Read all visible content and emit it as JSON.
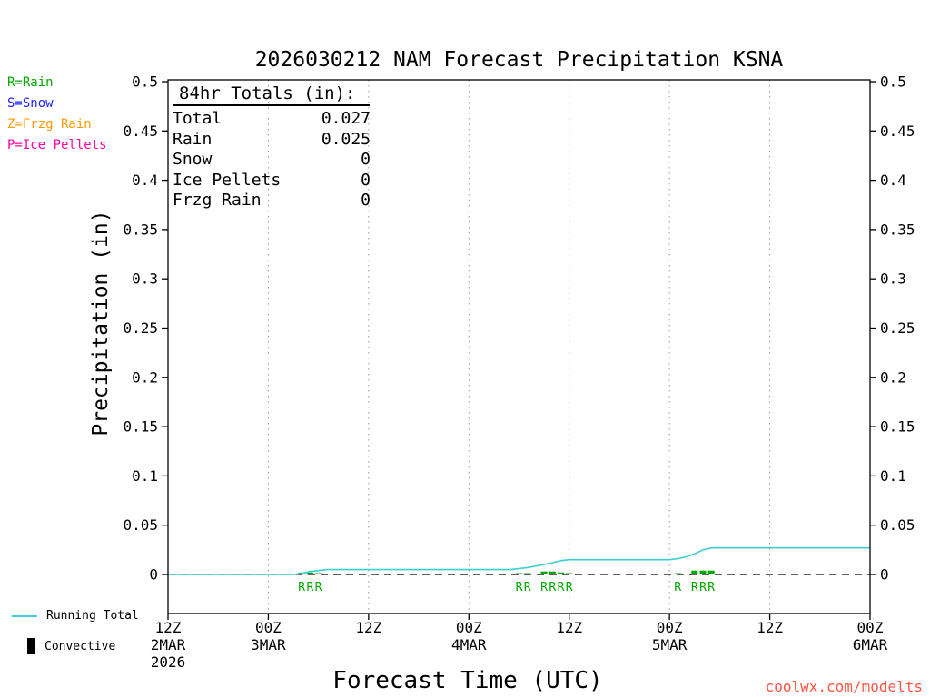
{
  "title": "2026030212 NAM Forecast Precipitation KSNA",
  "watermark": "coolwx.com/modelts",
  "legend_top_left": [
    {
      "code": "R",
      "label": "R=Rain",
      "color": "#00a800"
    },
    {
      "code": "S",
      "label": "S=Snow",
      "color": "#2222ff"
    },
    {
      "code": "Z",
      "label": "Z=Frzg Rain",
      "color": "#ff9900"
    },
    {
      "code": "P",
      "label": "P=Ice Pellets",
      "color": "#ff00aa"
    }
  ],
  "totals_box": {
    "heading": "84hr Totals (in):",
    "rows": [
      {
        "label": "Total",
        "value": "0.027"
      },
      {
        "label": "Rain",
        "value": "0.025"
      },
      {
        "label": "Snow",
        "value": "0"
      },
      {
        "label": "Ice Pellets",
        "value": "0"
      },
      {
        "label": "Frzg Rain",
        "value": "0"
      }
    ]
  },
  "bottom_legend": [
    {
      "label": "Running Total",
      "color": "#3dcfcf",
      "swatch": "line"
    },
    {
      "label": "Convective",
      "color": "#000000",
      "swatch": "bar"
    }
  ],
  "chart_data": {
    "type": "line",
    "title": "2026030212 NAM Forecast Precipitation KSNA",
    "xlabel": "Forecast Time (UTC)",
    "ylabel": "Precipitation (in)",
    "ylim": [
      0,
      0.5
    ],
    "y_tick_step": 0.05,
    "x_hours": [
      0,
      84
    ],
    "grid": "vertical-dotted",
    "zero_line": "dashed",
    "x_ticks": [
      {
        "hour": 0,
        "time": "12Z",
        "date": "2MAR",
        "year": "2026"
      },
      {
        "hour": 12,
        "time": "00Z",
        "date": "3MAR"
      },
      {
        "hour": 24,
        "time": "12Z"
      },
      {
        "hour": 36,
        "time": "00Z",
        "date": "4MAR"
      },
      {
        "hour": 48,
        "time": "12Z"
      },
      {
        "hour": 60,
        "time": "00Z",
        "date": "5MAR"
      },
      {
        "hour": 72,
        "time": "12Z"
      },
      {
        "hour": 84,
        "time": "00Z",
        "date": "6MAR"
      }
    ],
    "series": [
      {
        "name": "Running Total",
        "color": "#3dcfcf",
        "points": [
          [
            0,
            0
          ],
          [
            15,
            0
          ],
          [
            16,
            0.001
          ],
          [
            17,
            0.003
          ],
          [
            18,
            0.004
          ],
          [
            19,
            0.005
          ],
          [
            41,
            0.005
          ],
          [
            43,
            0.007
          ],
          [
            45,
            0.01
          ],
          [
            46,
            0.012
          ],
          [
            47,
            0.014
          ],
          [
            48,
            0.015
          ],
          [
            60,
            0.015
          ],
          [
            61,
            0.016
          ],
          [
            62,
            0.018
          ],
          [
            63,
            0.021
          ],
          [
            64,
            0.025
          ],
          [
            65,
            0.027
          ],
          [
            84,
            0.027
          ]
        ]
      }
    ],
    "precip_type_markers": [
      {
        "hour": 16,
        "type": "R",
        "amount": 0.002
      },
      {
        "hour": 17,
        "type": "R",
        "amount": 0.002
      },
      {
        "hour": 18,
        "type": "R",
        "amount": 0.001
      },
      {
        "hour": 42,
        "type": "R",
        "amount": 0.001
      },
      {
        "hour": 43,
        "type": "R",
        "amount": 0.001
      },
      {
        "hour": 45,
        "type": "R",
        "amount": 0.003
      },
      {
        "hour": 46,
        "type": "R",
        "amount": 0.003
      },
      {
        "hour": 47,
        "type": "R",
        "amount": 0.002
      },
      {
        "hour": 48,
        "type": "R",
        "amount": 0.001
      },
      {
        "hour": 61,
        "type": "R",
        "amount": 0.001
      },
      {
        "hour": 63,
        "type": "R",
        "amount": 0.004
      },
      {
        "hour": 64,
        "type": "R",
        "amount": 0.004
      },
      {
        "hour": 65,
        "type": "R",
        "amount": 0.004
      }
    ]
  }
}
